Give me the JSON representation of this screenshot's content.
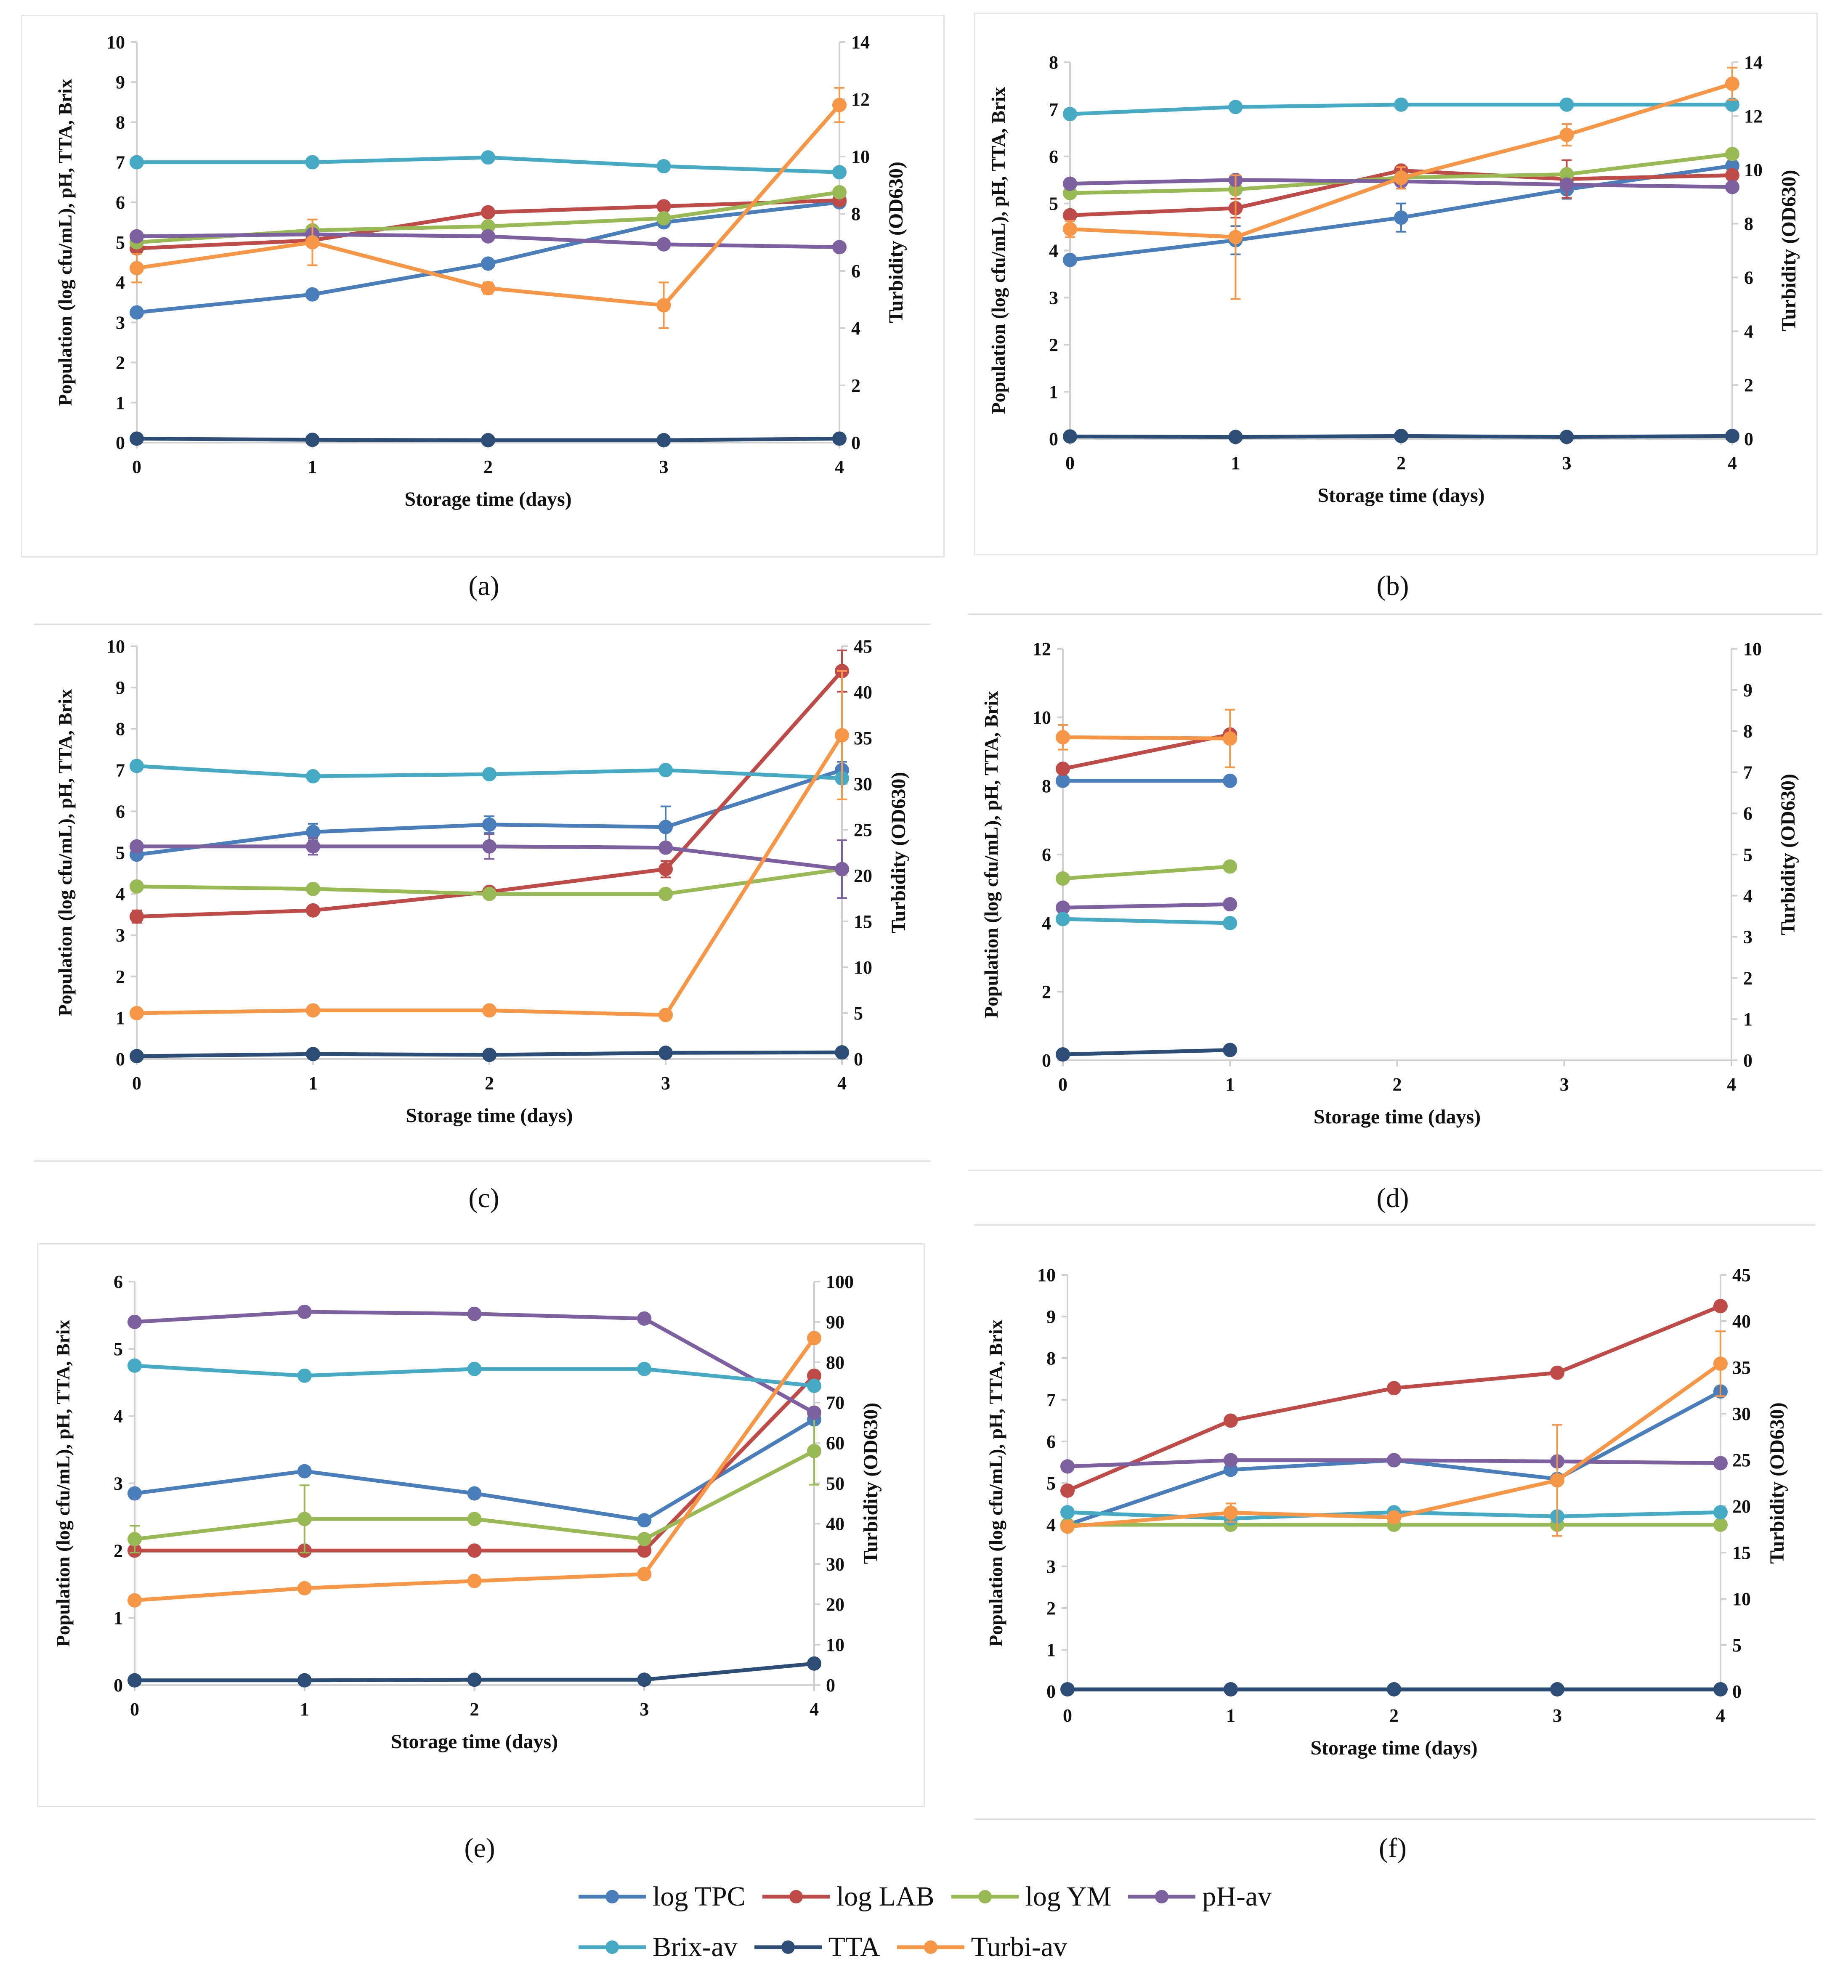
{
  "legend": {
    "row1": [
      {
        "key": "tpc",
        "label": "log TPC"
      },
      {
        "key": "lab",
        "label": "log LAB"
      },
      {
        "key": "ym",
        "label": "log YM"
      },
      {
        "key": "ph",
        "label": "pH-av"
      }
    ],
    "row2": [
      {
        "key": "brix",
        "label": "Brix-av"
      },
      {
        "key": "tta",
        "label": "TTA"
      },
      {
        "key": "turbi",
        "label": "Turbi-av"
      }
    ]
  },
  "colors": {
    "tpc": "#4a7ebb",
    "lab": "#be4b48",
    "ym": "#98b954",
    "ph": "#7d60a0",
    "brix": "#46aac5",
    "tta": "#2c4d75",
    "turbi": "#f79646"
  },
  "chart_data": [
    {
      "id": "a",
      "caption": "(a)",
      "type": "line",
      "xlabel": "Storage time (days)",
      "ylabel": "Population (log cfu/mL), pH, TTA, Brix",
      "y2label": "Turbidity (OD630)",
      "x": [
        0,
        1,
        2,
        3,
        4
      ],
      "ylim": [
        0,
        10
      ],
      "yticks": [
        0,
        1,
        2,
        3,
        4,
        5,
        6,
        7,
        8,
        9,
        10
      ],
      "y2lim": [
        0,
        14
      ],
      "y2ticks": [
        0,
        2,
        4,
        6,
        8,
        10,
        12,
        14
      ],
      "series": [
        {
          "key": "tpc",
          "name": "log TPC",
          "axis": "left",
          "values": [
            3.25,
            3.7,
            4.47,
            5.5,
            6.0
          ]
        },
        {
          "key": "lab",
          "name": "log LAB",
          "axis": "left",
          "values": [
            4.85,
            5.05,
            5.75,
            5.9,
            6.05
          ]
        },
        {
          "key": "ym",
          "name": "log YM",
          "axis": "left",
          "values": [
            5.0,
            5.3,
            5.4,
            5.6,
            6.25
          ]
        },
        {
          "key": "ph",
          "name": "pH-av",
          "axis": "left",
          "values": [
            5.15,
            5.2,
            5.15,
            4.95,
            4.88
          ]
        },
        {
          "key": "brix",
          "name": "Brix-av",
          "axis": "left",
          "values": [
            7.0,
            7.0,
            7.12,
            6.9,
            6.75
          ]
        },
        {
          "key": "tta",
          "name": "TTA",
          "axis": "left",
          "values": [
            0.1,
            0.07,
            0.06,
            0.06,
            0.1
          ]
        },
        {
          "key": "turbi",
          "name": "Turbi-av",
          "axis": "right",
          "values": [
            6.1,
            7.0,
            5.4,
            4.8,
            11.8
          ],
          "errors": [
            0.5,
            0.8,
            0.2,
            0.8,
            0.6
          ]
        }
      ]
    },
    {
      "id": "b",
      "caption": "(b)",
      "type": "line",
      "xlabel": "Storage time (days)",
      "ylabel": "Population (log cfu/mL), pH, TTA, Brix",
      "y2label": "Turbidity (OD630)",
      "x": [
        0,
        1,
        2,
        3,
        4
      ],
      "ylim": [
        0,
        8
      ],
      "yticks": [
        0,
        1,
        2,
        3,
        4,
        5,
        6,
        7,
        8
      ],
      "y2lim": [
        0,
        14
      ],
      "y2ticks": [
        0,
        2,
        4,
        6,
        8,
        10,
        12,
        14
      ],
      "series": [
        {
          "key": "tpc",
          "name": "log TPC",
          "axis": "left",
          "values": [
            3.8,
            4.22,
            4.7,
            5.3,
            5.8
          ],
          "errors": [
            0,
            0.3,
            0.3,
            0.2,
            0.1
          ]
        },
        {
          "key": "lab",
          "name": "log LAB",
          "axis": "left",
          "values": [
            4.75,
            4.9,
            5.7,
            5.52,
            5.6
          ],
          "errors": [
            0,
            0.2,
            0.1,
            0.4,
            0
          ]
        },
        {
          "key": "ym",
          "name": "log YM",
          "axis": "left",
          "values": [
            5.22,
            5.3,
            5.55,
            5.62,
            6.05
          ]
        },
        {
          "key": "ph",
          "name": "pH-av",
          "axis": "left",
          "values": [
            5.42,
            5.5,
            5.47,
            5.4,
            5.35
          ]
        },
        {
          "key": "brix",
          "name": "Brix-av",
          "axis": "left",
          "values": [
            6.9,
            7.05,
            7.1,
            7.1,
            7.1
          ]
        },
        {
          "key": "tta",
          "name": "TTA",
          "axis": "left",
          "values": [
            0.05,
            0.04,
            0.06,
            0.04,
            0.06
          ]
        },
        {
          "key": "turbi",
          "name": "Turbi-av",
          "axis": "right",
          "values": [
            7.8,
            7.5,
            9.7,
            11.3,
            13.2
          ],
          "errors": [
            0.3,
            2.3,
            0.4,
            0.4,
            0.6
          ]
        }
      ]
    },
    {
      "id": "c",
      "caption": "(c)",
      "type": "line",
      "xlabel": "Storage time (days)",
      "ylabel": "Population (log cfu/mL), pH, TTA, Brix",
      "y2label": "Turbidity (OD630)",
      "x": [
        0,
        1,
        2,
        3,
        4
      ],
      "ylim": [
        0,
        10
      ],
      "yticks": [
        0,
        1,
        2,
        3,
        4,
        5,
        6,
        7,
        8,
        9,
        10
      ],
      "y2lim": [
        0,
        45
      ],
      "y2ticks": [
        0,
        5,
        10,
        15,
        20,
        25,
        30,
        35,
        40,
        45
      ],
      "series": [
        {
          "key": "tpc",
          "name": "log TPC",
          "axis": "left",
          "values": [
            4.95,
            5.5,
            5.68,
            5.62,
            7.0
          ],
          "errors": [
            0,
            0.2,
            0.2,
            0.5,
            0.2
          ]
        },
        {
          "key": "lab",
          "name": "log LAB",
          "axis": "left",
          "values": [
            3.45,
            3.6,
            4.05,
            4.6,
            9.4
          ],
          "errors": [
            0.15,
            0,
            0,
            0.2,
            0.5
          ]
        },
        {
          "key": "ym",
          "name": "log YM",
          "axis": "left",
          "values": [
            4.18,
            4.12,
            4.0,
            4.0,
            4.6
          ]
        },
        {
          "key": "ph",
          "name": "pH-av",
          "axis": "left",
          "values": [
            5.15,
            5.15,
            5.15,
            5.12,
            4.6
          ],
          "errors": [
            0,
            0.2,
            0.3,
            0,
            0.7
          ]
        },
        {
          "key": "brix",
          "name": "Brix-av",
          "axis": "left",
          "values": [
            7.1,
            6.85,
            6.9,
            7.0,
            6.8
          ]
        },
        {
          "key": "tta",
          "name": "TTA",
          "axis": "left",
          "values": [
            0.07,
            0.12,
            0.1,
            0.15,
            0.16
          ]
        },
        {
          "key": "turbi",
          "name": "Turbi-av",
          "axis": "right",
          "values": [
            5.0,
            5.3,
            5.3,
            4.8,
            35.3
          ],
          "errors": [
            0,
            0,
            0,
            0,
            7
          ]
        }
      ]
    },
    {
      "id": "d",
      "caption": "(d)",
      "type": "line",
      "xlabel": "Storage time (days)",
      "ylabel": "Population (log cfu/mL), pH, TTA, Brix",
      "y2label": "Turbidity (OD630)",
      "x": [
        0,
        1,
        2,
        3,
        4
      ],
      "ylim": [
        0,
        12
      ],
      "yticks": [
        0,
        2,
        4,
        6,
        8,
        10,
        12
      ],
      "y2lim": [
        0,
        10
      ],
      "y2ticks": [
        0,
        1,
        2,
        3,
        4,
        5,
        6,
        7,
        8,
        9,
        10
      ],
      "series": [
        {
          "key": "tpc",
          "name": "log TPC",
          "axis": "left",
          "values": [
            8.15,
            8.15,
            null,
            null,
            null
          ]
        },
        {
          "key": "lab",
          "name": "log LAB",
          "axis": "left",
          "values": [
            8.5,
            9.5,
            null,
            null,
            null
          ]
        },
        {
          "key": "ym",
          "name": "log YM",
          "axis": "left",
          "values": [
            5.3,
            5.65,
            null,
            null,
            null
          ]
        },
        {
          "key": "ph",
          "name": "pH-av",
          "axis": "left",
          "values": [
            4.45,
            4.55,
            null,
            null,
            null
          ]
        },
        {
          "key": "brix",
          "name": "Brix-av",
          "axis": "left",
          "values": [
            4.12,
            4.0,
            null,
            null,
            null
          ]
        },
        {
          "key": "tta",
          "name": "TTA",
          "axis": "left",
          "values": [
            0.17,
            0.3,
            null,
            null,
            null
          ]
        },
        {
          "key": "turbi",
          "name": "Turbi-av",
          "axis": "right",
          "values": [
            7.85,
            7.82,
            null,
            null,
            null
          ],
          "errors": [
            0.3,
            0.7,
            0,
            0,
            0
          ]
        }
      ]
    },
    {
      "id": "e",
      "caption": "(e)",
      "type": "line",
      "xlabel": "Storage time (days)",
      "ylabel": "Population (log cfu/mL), pH, TTA, Brix",
      "y2label": "Turbidity (OD630)",
      "x": [
        0,
        1,
        2,
        3,
        4
      ],
      "ylim": [
        0,
        6
      ],
      "yticks": [
        0,
        1,
        2,
        3,
        4,
        5,
        6
      ],
      "y2lim": [
        0,
        100
      ],
      "y2ticks": [
        0,
        10,
        20,
        30,
        40,
        50,
        60,
        70,
        80,
        90,
        100
      ],
      "series": [
        {
          "key": "tpc",
          "name": "log TPC",
          "axis": "left",
          "values": [
            2.85,
            3.18,
            2.85,
            2.45,
            3.95
          ]
        },
        {
          "key": "lab",
          "name": "log LAB",
          "axis": "left",
          "values": [
            2.0,
            2.0,
            2.0,
            2.0,
            4.6
          ]
        },
        {
          "key": "ym",
          "name": "log YM",
          "axis": "left",
          "values": [
            2.17,
            2.47,
            2.47,
            2.17,
            3.48
          ],
          "errors": [
            0.2,
            0.5,
            0,
            0,
            0.5
          ]
        },
        {
          "key": "ph",
          "name": "pH-av",
          "axis": "left",
          "values": [
            5.4,
            5.55,
            5.52,
            5.45,
            4.05
          ]
        },
        {
          "key": "brix",
          "name": "Brix-av",
          "axis": "left",
          "values": [
            4.75,
            4.6,
            4.7,
            4.7,
            4.45
          ]
        },
        {
          "key": "tta",
          "name": "TTA",
          "axis": "left",
          "values": [
            0.07,
            0.07,
            0.08,
            0.08,
            0.32
          ]
        },
        {
          "key": "turbi",
          "name": "Turbi-av",
          "axis": "right",
          "values": [
            21.0,
            24.0,
            25.8,
            27.5,
            86.0
          ]
        }
      ]
    },
    {
      "id": "f",
      "caption": "(f)",
      "type": "line",
      "xlabel": "Storage time (days)",
      "ylabel": "Population (log cfu/mL), pH, TTA, Brix",
      "y2label": "Turbidity (OD630)",
      "x": [
        0,
        1,
        2,
        3,
        4
      ],
      "ylim": [
        0,
        10
      ],
      "yticks": [
        0,
        1,
        2,
        3,
        4,
        5,
        6,
        7,
        8,
        9,
        10
      ],
      "y2lim": [
        0,
        45
      ],
      "y2ticks": [
        0,
        5,
        10,
        15,
        20,
        25,
        30,
        35,
        40,
        45
      ],
      "series": [
        {
          "key": "tpc",
          "name": "log TPC",
          "axis": "left",
          "values": [
            4.0,
            5.32,
            5.55,
            5.1,
            7.2
          ]
        },
        {
          "key": "lab",
          "name": "log LAB",
          "axis": "left",
          "values": [
            4.82,
            6.5,
            7.28,
            7.65,
            9.25
          ]
        },
        {
          "key": "ym",
          "name": "log YM",
          "axis": "left",
          "values": [
            4.0,
            4.0,
            4.0,
            4.0,
            4.0
          ]
        },
        {
          "key": "ph",
          "name": "pH-av",
          "axis": "left",
          "values": [
            5.4,
            5.55,
            5.55,
            5.52,
            5.48
          ]
        },
        {
          "key": "brix",
          "name": "Brix-av",
          "axis": "left",
          "values": [
            4.3,
            4.15,
            4.3,
            4.2,
            4.3
          ]
        },
        {
          "key": "tta",
          "name": "TTA",
          "axis": "left",
          "values": [
            0.05,
            0.05,
            0.05,
            0.05,
            0.05
          ]
        },
        {
          "key": "turbi",
          "name": "Turbi-av",
          "axis": "right",
          "values": [
            17.8,
            19.3,
            18.8,
            22.8,
            35.4
          ],
          "errors": [
            0,
            1,
            0,
            6,
            3.5
          ]
        }
      ]
    }
  ]
}
